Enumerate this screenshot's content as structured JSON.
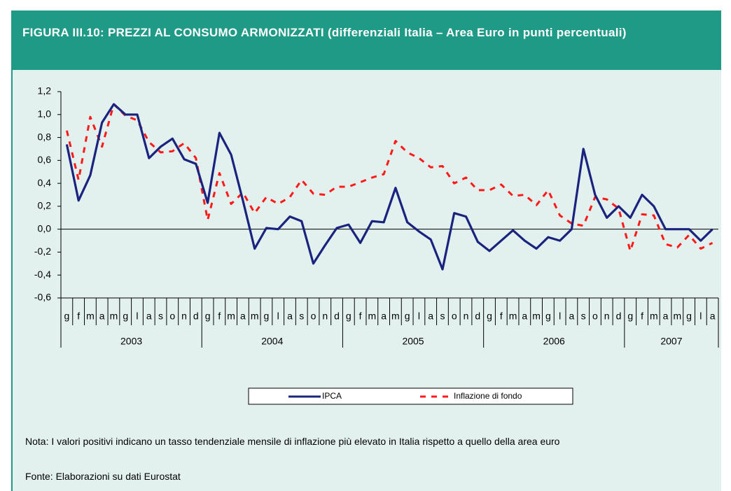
{
  "chart_data": {
    "type": "line",
    "title": "FIGURA III.10: PREZZI AL CONSUMO ARMONIZZATI (differenziali Italia – Area Euro in punti percentuali)",
    "categories": [
      "g",
      "f",
      "m",
      "a",
      "m",
      "g",
      "l",
      "a",
      "s",
      "o",
      "n",
      "d",
      "g",
      "f",
      "m",
      "a",
      "m",
      "g",
      "l",
      "a",
      "s",
      "o",
      "n",
      "d",
      "g",
      "f",
      "m",
      "a",
      "m",
      "g",
      "l",
      "a",
      "s",
      "o",
      "n",
      "d",
      "g",
      "f",
      "m",
      "a",
      "m",
      "g",
      "l",
      "a",
      "s",
      "o",
      "n",
      "d",
      "g",
      "f",
      "m",
      "a",
      "m",
      "g",
      "l",
      "a"
    ],
    "years": [
      "2003",
      "2004",
      "2005",
      "2006",
      "2007"
    ],
    "series": [
      {
        "name": "IPCA",
        "color": "#1a237e",
        "dashed": false,
        "values": [
          0.74,
          0.25,
          0.47,
          0.93,
          1.09,
          1.0,
          1.0,
          0.62,
          0.72,
          0.79,
          0.61,
          0.57,
          0.23,
          0.84,
          0.65,
          0.25,
          -0.17,
          0.01,
          0.0,
          0.11,
          0.07,
          -0.3,
          -0.14,
          0.01,
          0.04,
          -0.12,
          0.07,
          0.06,
          0.36,
          0.06,
          -0.02,
          -0.09,
          -0.35,
          0.14,
          0.11,
          -0.11,
          -0.19,
          -0.1,
          -0.01,
          -0.1,
          -0.17,
          -0.07,
          -0.1,
          0.0,
          0.7,
          0.3,
          0.1,
          0.2,
          0.1,
          0.3,
          0.2,
          0.0,
          0.0,
          0.0,
          -0.1,
          0.0
        ]
      },
      {
        "name": "Inflazione di fondo",
        "color": "#ff1a1a",
        "dashed": true,
        "values": [
          0.86,
          0.43,
          0.98,
          0.72,
          1.09,
          0.99,
          0.95,
          0.76,
          0.67,
          0.68,
          0.75,
          0.62,
          0.08,
          0.49,
          0.22,
          0.32,
          0.14,
          0.28,
          0.22,
          0.28,
          0.43,
          0.31,
          0.3,
          0.37,
          0.37,
          0.41,
          0.45,
          0.48,
          0.77,
          0.67,
          0.62,
          0.54,
          0.55,
          0.4,
          0.45,
          0.34,
          0.34,
          0.39,
          0.29,
          0.3,
          0.21,
          0.34,
          0.12,
          0.05,
          0.03,
          0.28,
          0.26,
          0.18,
          -0.19,
          0.13,
          0.12,
          -0.13,
          -0.16,
          -0.05,
          -0.17,
          -0.12
        ]
      }
    ],
    "ylim": [
      -0.6,
      1.2
    ],
    "yticks": [
      {
        "value": -0.6,
        "label": "-0,6"
      },
      {
        "value": -0.4,
        "label": "-0,4"
      },
      {
        "value": -0.2,
        "label": "-0,2"
      },
      {
        "value": 0,
        "label": "0,0"
      },
      {
        "value": 0.2,
        "label": "0,2"
      },
      {
        "value": 0.4,
        "label": "0,4"
      },
      {
        "value": 0.6,
        "label": "0,6"
      },
      {
        "value": 0.8,
        "label": "0,8"
      },
      {
        "value": 1.0,
        "label": "1,0"
      },
      {
        "value": 1.2,
        "label": "1,2"
      }
    ],
    "notes": [
      "Nota: I valori positivi indicano un tasso tendenziale mensile di inflazione più elevato in Italia rispetto a quello della area euro",
      "Fonte: Elaborazioni su dati Eurostat"
    ]
  }
}
